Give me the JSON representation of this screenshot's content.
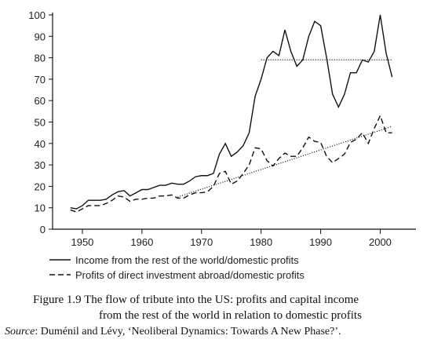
{
  "chart_data": {
    "type": "line",
    "x": [
      1948,
      1949,
      1950,
      1951,
      1952,
      1953,
      1954,
      1955,
      1956,
      1957,
      1958,
      1959,
      1960,
      1961,
      1962,
      1963,
      1964,
      1965,
      1966,
      1967,
      1968,
      1969,
      1970,
      1971,
      1972,
      1973,
      1974,
      1975,
      1976,
      1977,
      1978,
      1979,
      1980,
      1981,
      1982,
      1983,
      1984,
      1985,
      1986,
      1987,
      1988,
      1989,
      1990,
      1991,
      1992,
      1993,
      1994,
      1995,
      1996,
      1997,
      1998,
      1999,
      2000,
      2001,
      2002
    ],
    "series": [
      {
        "name": "Income from the rest of the world/domestic profits",
        "color": "#111111",
        "dash": "solid",
        "values": [
          10,
          9.5,
          11,
          13.5,
          13.5,
          13.5,
          14,
          16,
          17.5,
          18,
          15.5,
          17,
          18.5,
          18.5,
          19.5,
          20.5,
          20.5,
          21.5,
          21,
          21,
          22.5,
          24.5,
          25,
          25,
          26,
          35,
          40,
          34,
          36,
          39,
          45,
          62,
          70,
          80,
          83,
          81,
          93,
          83,
          76,
          79,
          90,
          97,
          95,
          80,
          63,
          57,
          63,
          73,
          73,
          79,
          78,
          83,
          100,
          82,
          71
        ]
      },
      {
        "name": "Profits of direct investment abroad/domestic profits",
        "color": "#111111",
        "dash": "dashed",
        "values": [
          9,
          8,
          9.5,
          11,
          11,
          11,
          12,
          13.5,
          15.5,
          15,
          13,
          14,
          14,
          14.5,
          14.5,
          15.5,
          15.5,
          16,
          14.5,
          14.5,
          16,
          17,
          17,
          17.5,
          20,
          26,
          27,
          21,
          22.5,
          26,
          30,
          38,
          37.5,
          32,
          29.5,
          33,
          35.5,
          34,
          34,
          38,
          43,
          41,
          40.5,
          34,
          31,
          33,
          35,
          40.5,
          42,
          45,
          40,
          47,
          53,
          45,
          45
        ]
      }
    ],
    "trend_lines": [
      {
        "x": [
          1980,
          2002
        ],
        "values": [
          79,
          79
        ]
      },
      {
        "x": [
          1966,
          2002
        ],
        "values": [
          15,
          48
        ]
      }
    ],
    "xlim": [
      1945,
      2006
    ],
    "xticks": [
      1950,
      1960,
      1970,
      1980,
      1990,
      2000
    ],
    "ylim": [
      0,
      100
    ],
    "yticks": [
      0,
      10,
      20,
      30,
      40,
      50,
      60,
      70,
      80,
      90,
      100
    ],
    "caption": {
      "lines": [
        "Figure 1.9  The flow of tribute into the US: profits and capital income",
        "from the rest of the world in relation to domestic profits"
      ],
      "source_label": "Source",
      "source_text": ": Duménil and Lévy, ‘Neoliberal Dynamics: Towards A New Phase?’."
    }
  }
}
